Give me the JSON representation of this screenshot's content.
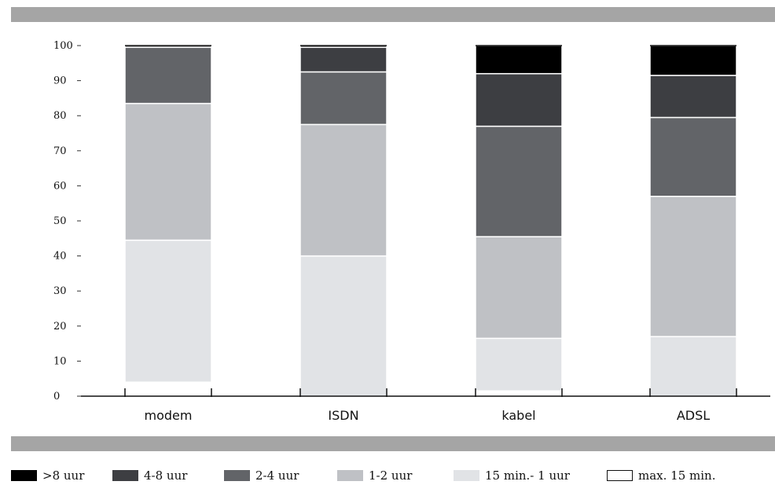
{
  "chart_data": {
    "type": "bar",
    "stacked": true,
    "categories": [
      "modem",
      "ISDN",
      "kabel",
      "ADSL"
    ],
    "ylim": [
      0,
      100
    ],
    "yticks": [
      "0",
      "10",
      "20",
      "30",
      "40",
      "50",
      "60",
      "70",
      "80",
      "90",
      "100"
    ],
    "xlabel": "",
    "ylabel": "",
    "legend_position": "bottom",
    "series": [
      {
        "name": "max. 15 min.",
        "color": "#ffffff",
        "values": [
          4,
          0,
          1.5,
          0
        ]
      },
      {
        "name": "15 min.- 1 uur",
        "color": "#e1e3e6",
        "values": [
          40.5,
          40,
          15,
          17
        ]
      },
      {
        "name": "1-2 uur",
        "color": "#bfc1c5",
        "values": [
          39,
          37.5,
          29,
          40
        ]
      },
      {
        "name": "2-4 uur",
        "color": "#626468",
        "values": [
          16,
          15,
          31.5,
          22.5
        ]
      },
      {
        "name": "4-8 uur",
        "color": "#3d3e42",
        "values": [
          0.5,
          7,
          15,
          12
        ]
      },
      {
        "name": ">8 uur",
        "color": "#000000",
        "values": [
          0,
          0.5,
          8,
          8.5
        ]
      }
    ]
  },
  "legend": [
    {
      "label": ">8 uur",
      "color": "#000000"
    },
    {
      "label": "4-8 uur",
      "color": "#3d3e42"
    },
    {
      "label": "2-4 uur",
      "color": "#626468"
    },
    {
      "label": "1-2 uur",
      "color": "#bfc1c5"
    },
    {
      "label": "15 min.- 1 uur",
      "color": "#e1e3e6"
    },
    {
      "label": "max. 15 min.",
      "color": "#ffffff"
    }
  ]
}
